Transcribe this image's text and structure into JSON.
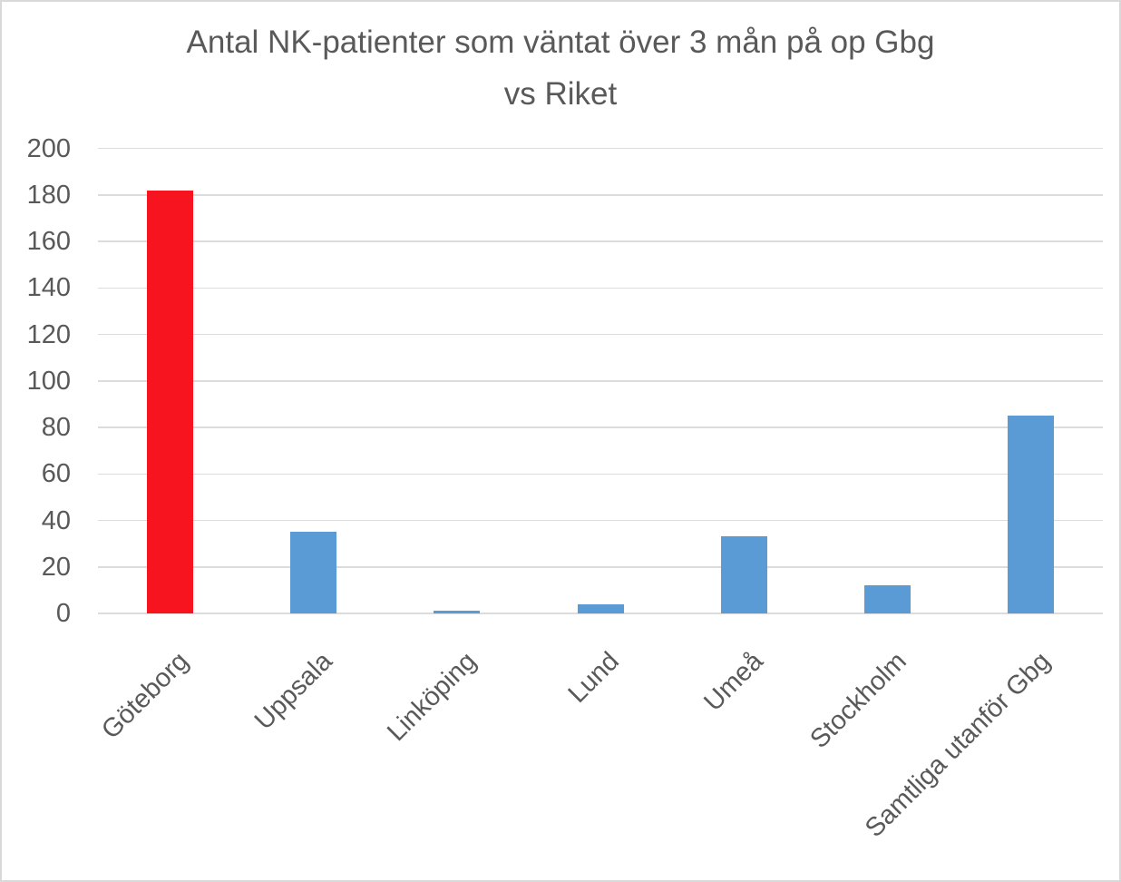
{
  "chart_data": {
    "type": "bar",
    "title": "Antal NK-patienter som väntat över 3 mån på op Gbg vs Riket",
    "title_lines": [
      "Antal NK-patienter som väntat över 3 mån på op Gbg",
      "vs Riket"
    ],
    "categories": [
      "Göteborg",
      "Uppsala",
      "Linköping",
      "Lund",
      "Umeå",
      "Stockholm",
      "Samtliga utanför Gbg"
    ],
    "values": [
      182,
      35,
      1,
      4,
      33,
      12,
      85
    ],
    "bar_colors": [
      "#f8141e",
      "#5b9bd5",
      "#5b9bd5",
      "#5b9bd5",
      "#5b9bd5",
      "#5b9bd5",
      "#5b9bd5"
    ],
    "xlabel": "",
    "ylabel": "",
    "ylim": [
      0,
      200
    ],
    "yticks": [
      0,
      20,
      40,
      60,
      80,
      100,
      120,
      140,
      160,
      180,
      200
    ],
    "grid": true,
    "legend": "none",
    "x_label_rotation_deg": -45
  },
  "colors": {
    "highlight_red": "#f8141e",
    "bar_blue": "#5b9bd5",
    "gridline": "#dcdcdc",
    "text": "#595959",
    "border": "#d9d9d9",
    "background": "#ffffff"
  }
}
